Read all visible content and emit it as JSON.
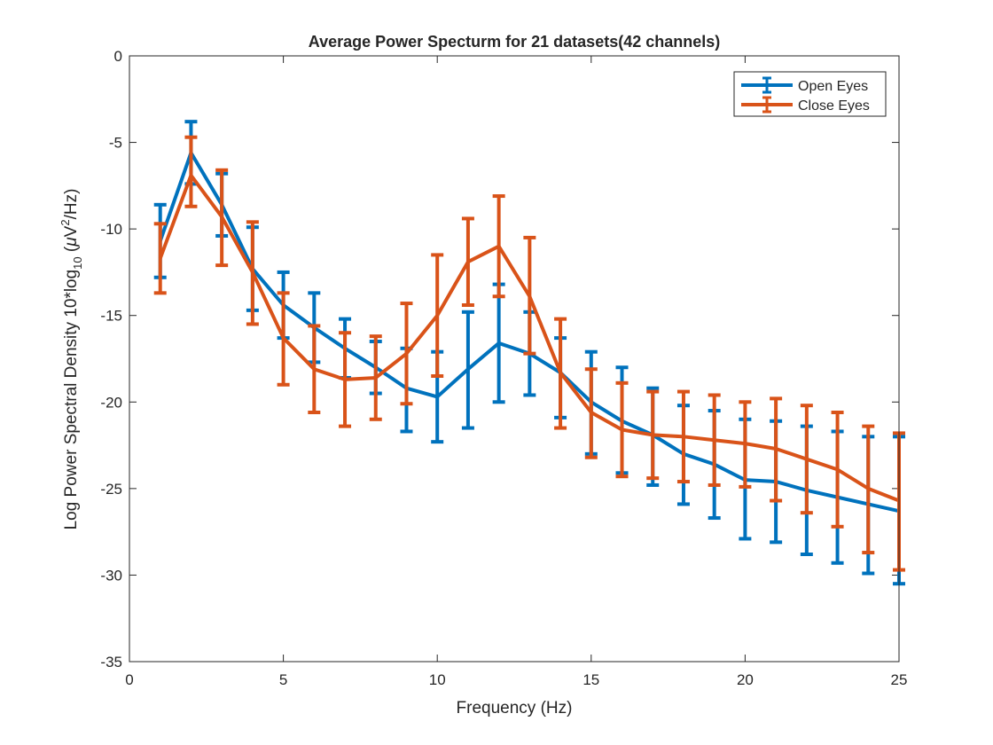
{
  "chart_data": {
    "type": "line",
    "title": "Average Power Specturm for 21 datasets(42 channels)",
    "xlabel": "Frequency (Hz)",
    "ylabel": {
      "prefix": "Log Power Spectral Density 10*log",
      "sub": "10",
      "mid": " (",
      "mu": "μ",
      "unit": "V",
      "sup": "2",
      "suffix": "/Hz)"
    },
    "xlim": [
      0,
      25
    ],
    "ylim": [
      -35,
      0
    ],
    "xticks": [
      0,
      5,
      10,
      15,
      20,
      25
    ],
    "yticks": [
      0,
      -5,
      -10,
      -15,
      -20,
      -25,
      -30,
      -35
    ],
    "grid": false,
    "legend_position": "top-right",
    "x": [
      1,
      2,
      3,
      4,
      5,
      6,
      7,
      8,
      9,
      10,
      11,
      12,
      13,
      14,
      15,
      16,
      17,
      18,
      19,
      20,
      21,
      22,
      23,
      24,
      25
    ],
    "series": [
      {
        "name": "Open Eyes",
        "color": "#0072BD",
        "values": [
          -10.7,
          -5.6,
          -8.6,
          -12.3,
          -14.4,
          -15.7,
          -16.9,
          -18.0,
          -19.2,
          -19.7,
          -18.1,
          -16.6,
          -17.2,
          -18.3,
          -20.0,
          -21.1,
          -21.9,
          -23.0,
          -23.6,
          -24.5,
          -24.6,
          -25.1,
          -25.5,
          -25.9,
          -26.3
        ],
        "err_low": [
          -12.8,
          -7.4,
          -10.4,
          -14.7,
          -16.3,
          -17.7,
          -18.6,
          -19.5,
          -21.7,
          -22.3,
          -21.5,
          -20.0,
          -19.6,
          -20.9,
          -23.0,
          -24.1,
          -24.8,
          -25.9,
          -26.7,
          -27.9,
          -28.1,
          -28.8,
          -29.3,
          -29.9,
          -30.5
        ],
        "err_high": [
          -8.6,
          -3.8,
          -6.8,
          -9.9,
          -12.5,
          -13.7,
          -15.2,
          -16.5,
          -16.9,
          -17.1,
          -14.8,
          -13.2,
          -14.8,
          -16.3,
          -17.1,
          -18.0,
          -19.2,
          -20.2,
          -20.5,
          -21.0,
          -21.1,
          -21.4,
          -21.7,
          -22.0,
          -22.0
        ]
      },
      {
        "name": "Close Eyes",
        "color": "#D95319",
        "values": [
          -11.7,
          -6.9,
          -9.3,
          -12.5,
          -16.3,
          -18.1,
          -18.7,
          -18.6,
          -17.2,
          -15.0,
          -11.9,
          -11.0,
          -13.9,
          -18.3,
          -20.6,
          -21.6,
          -21.9,
          -22.0,
          -22.2,
          -22.4,
          -22.7,
          -23.3,
          -23.9,
          -25.0,
          -25.7
        ],
        "err_low": [
          -13.7,
          -8.7,
          -12.1,
          -15.5,
          -19.0,
          -20.6,
          -21.4,
          -21.0,
          -20.1,
          -18.5,
          -14.4,
          -13.9,
          -17.2,
          -21.5,
          -23.2,
          -24.3,
          -24.4,
          -24.6,
          -24.8,
          -24.9,
          -25.7,
          -26.4,
          -27.2,
          -28.7,
          -29.7
        ],
        "err_high": [
          -9.7,
          -4.7,
          -6.6,
          -9.6,
          -13.7,
          -15.6,
          -16.0,
          -16.2,
          -14.3,
          -11.5,
          -9.4,
          -8.1,
          -10.5,
          -15.2,
          -18.1,
          -18.9,
          -19.4,
          -19.4,
          -19.6,
          -20.0,
          -19.8,
          -20.2,
          -20.6,
          -21.4,
          -21.8
        ]
      }
    ]
  }
}
